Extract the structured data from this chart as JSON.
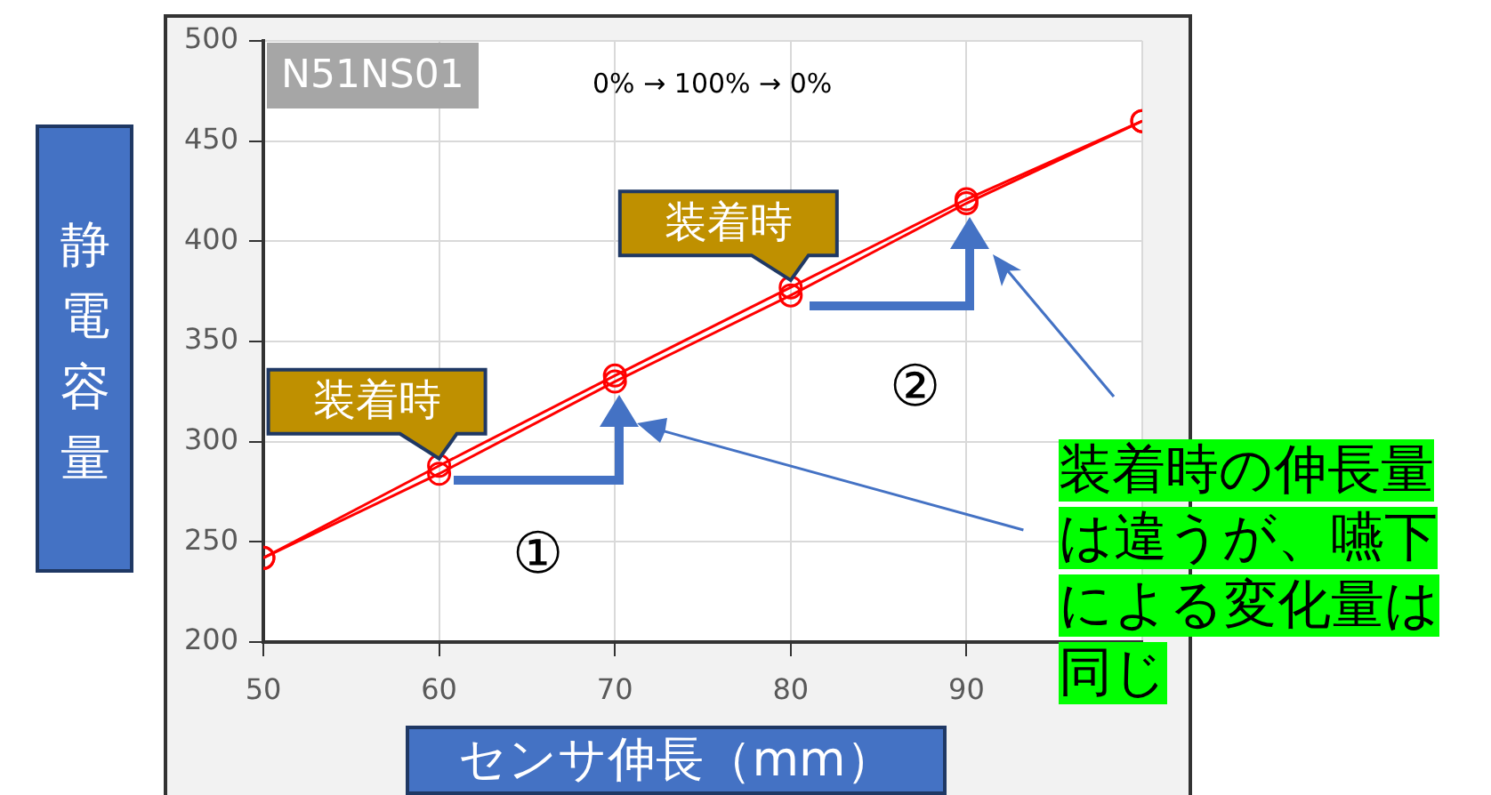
{
  "chart_data": {
    "type": "line",
    "xlabel": "センサ伸長（mm）",
    "ylabel": "静電容量",
    "x": [
      50,
      60,
      70,
      80,
      90,
      100
    ],
    "series": [
      {
        "color": "#ff0000",
        "values": [
          242,
          284,
          330,
          373,
          419,
          460
        ]
      },
      {
        "color": "#ff0000",
        "values": [
          242,
          288,
          333,
          377,
          421,
          460
        ]
      }
    ],
    "xlim": [
      50,
      100
    ],
    "xticks": [
      50,
      60,
      70,
      80,
      90,
      {
        "value": 100,
        "label": null
      }
    ],
    "ylim": [
      200,
      500
    ],
    "yticks": [
      200,
      250,
      300,
      350,
      400,
      450,
      500
    ],
    "grid": true,
    "legend": false,
    "marker": "circle",
    "line_style": "solid",
    "annotations": [
      "N51NS01",
      "0% → 100% → 0%",
      {
        "text": "装着時",
        "x": 60,
        "y": 288
      },
      {
        "text": "装着時",
        "x": 80,
        "y": 377
      },
      "①",
      "②",
      "装着時の伸長量は違うが、嚥下による変化量は同じ"
    ]
  }
}
